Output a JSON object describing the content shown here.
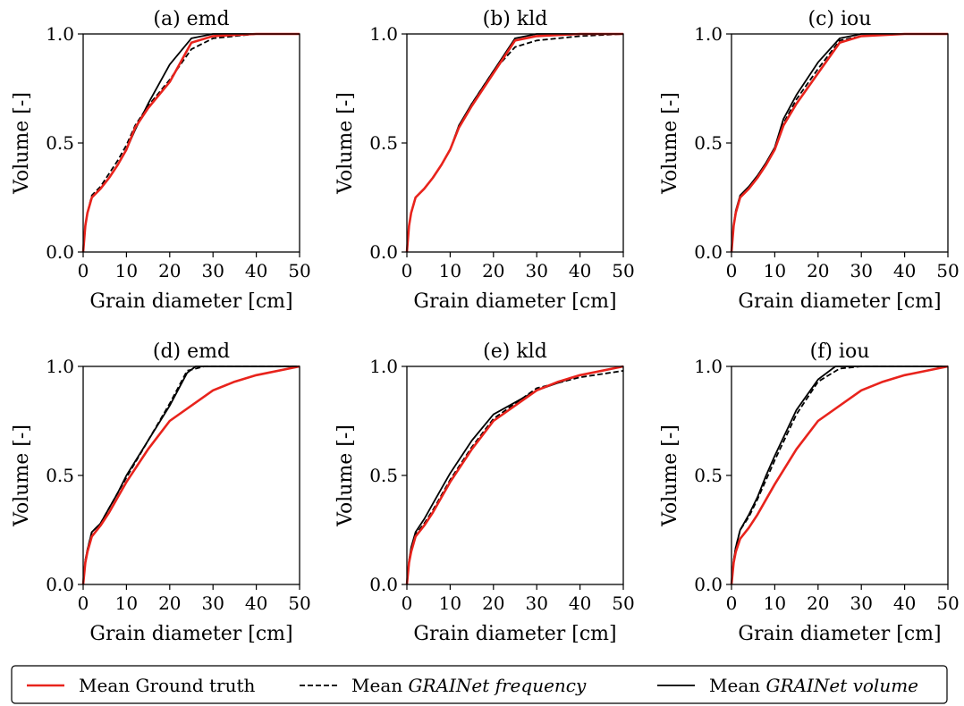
{
  "chart_data": [
    {
      "type": "line",
      "title": "(a) emd",
      "xlabel": "Grain diameter [cm]",
      "ylabel": "Volume [-]",
      "xlim": [
        0,
        50
      ],
      "ylim": [
        0,
        1
      ],
      "xticks": [
        "0",
        "10",
        "20",
        "30",
        "40",
        "50"
      ],
      "yticks": [
        "0.0",
        "0.5",
        "1.0"
      ],
      "series": [
        {
          "key": "gt",
          "x": [
            0,
            0.5,
            1,
            2,
            4,
            6,
            8,
            10,
            12,
            15,
            20,
            25,
            30,
            40,
            50
          ],
          "y": [
            0,
            0.12,
            0.18,
            0.25,
            0.29,
            0.34,
            0.4,
            0.47,
            0.57,
            0.66,
            0.78,
            0.96,
            0.99,
            1.0,
            1.0
          ]
        },
        {
          "key": "freq",
          "x": [
            0,
            0.5,
            1,
            2,
            4,
            6,
            8,
            10,
            12,
            15,
            20,
            25,
            30,
            40,
            50
          ],
          "y": [
            0,
            0.12,
            0.18,
            0.26,
            0.3,
            0.36,
            0.42,
            0.49,
            0.58,
            0.67,
            0.79,
            0.93,
            0.98,
            1.0,
            1.0
          ]
        },
        {
          "key": "vol",
          "x": [
            0,
            0.5,
            1,
            2,
            4,
            6,
            8,
            10,
            12,
            15,
            20,
            25,
            30,
            40,
            50
          ],
          "y": [
            0,
            0.12,
            0.18,
            0.25,
            0.29,
            0.34,
            0.4,
            0.47,
            0.56,
            0.68,
            0.86,
            0.98,
            1.0,
            1.0,
            1.0
          ]
        }
      ]
    },
    {
      "type": "line",
      "title": "(b) kld",
      "xlabel": "Grain diameter [cm]",
      "ylabel": "Volume [-]",
      "xlim": [
        0,
        50
      ],
      "ylim": [
        0,
        1
      ],
      "xticks": [
        "0",
        "10",
        "20",
        "30",
        "40",
        "50"
      ],
      "yticks": [
        "0.0",
        "0.5",
        "1.0"
      ],
      "series": [
        {
          "key": "gt",
          "x": [
            0,
            0.5,
            1,
            2,
            4,
            6,
            8,
            10,
            12,
            15,
            20,
            25,
            30,
            40,
            50
          ],
          "y": [
            0,
            0.12,
            0.18,
            0.25,
            0.29,
            0.34,
            0.4,
            0.47,
            0.57,
            0.67,
            0.82,
            0.97,
            0.99,
            1.0,
            1.0
          ]
        },
        {
          "key": "freq",
          "x": [
            0,
            0.5,
            1,
            2,
            4,
            6,
            8,
            10,
            12,
            15,
            20,
            25,
            30,
            40,
            50
          ],
          "y": [
            0,
            0.12,
            0.18,
            0.25,
            0.29,
            0.34,
            0.4,
            0.47,
            0.57,
            0.68,
            0.83,
            0.94,
            0.97,
            0.99,
            1.0
          ]
        },
        {
          "key": "vol",
          "x": [
            0,
            0.5,
            1,
            2,
            4,
            6,
            8,
            10,
            12,
            15,
            20,
            25,
            30,
            40,
            50
          ],
          "y": [
            0,
            0.12,
            0.18,
            0.25,
            0.29,
            0.34,
            0.4,
            0.47,
            0.58,
            0.68,
            0.83,
            0.98,
            1.0,
            1.0,
            1.0
          ]
        }
      ]
    },
    {
      "type": "line",
      "title": "(c) iou",
      "xlabel": "Grain diameter [cm]",
      "ylabel": "Volume [-]",
      "xlim": [
        0,
        50
      ],
      "ylim": [
        0,
        1
      ],
      "xticks": [
        "0",
        "10",
        "20",
        "30",
        "40",
        "50"
      ],
      "yticks": [
        "0.0",
        "0.5",
        "1.0"
      ],
      "series": [
        {
          "key": "gt",
          "x": [
            0,
            0.5,
            1,
            2,
            4,
            6,
            8,
            10,
            12,
            15,
            20,
            25,
            30,
            40,
            50
          ],
          "y": [
            0,
            0.12,
            0.18,
            0.25,
            0.29,
            0.34,
            0.4,
            0.47,
            0.58,
            0.68,
            0.82,
            0.96,
            0.99,
            1.0,
            1.0
          ]
        },
        {
          "key": "freq",
          "x": [
            0,
            0.5,
            1,
            2,
            4,
            6,
            8,
            10,
            12,
            15,
            20,
            25,
            30,
            40,
            50
          ],
          "y": [
            0,
            0.12,
            0.18,
            0.25,
            0.29,
            0.34,
            0.4,
            0.47,
            0.59,
            0.7,
            0.84,
            0.97,
            0.99,
            1.0,
            1.0
          ]
        },
        {
          "key": "vol",
          "x": [
            0,
            0.5,
            1,
            2,
            4,
            6,
            8,
            10,
            12,
            15,
            20,
            25,
            30,
            40,
            50
          ],
          "y": [
            0,
            0.12,
            0.19,
            0.26,
            0.3,
            0.35,
            0.41,
            0.48,
            0.61,
            0.72,
            0.87,
            0.98,
            1.0,
            1.0,
            1.0
          ]
        }
      ]
    },
    {
      "type": "line",
      "title": "(d) emd",
      "xlabel": "Grain diameter [cm]",
      "ylabel": "Volume [-]",
      "xlim": [
        0,
        50
      ],
      "ylim": [
        0,
        1
      ],
      "xticks": [
        "0",
        "10",
        "20",
        "30",
        "40",
        "50"
      ],
      "yticks": [
        "0.0",
        "0.5",
        "1.0"
      ],
      "series": [
        {
          "key": "gt",
          "x": [
            0,
            0.5,
            1,
            2,
            4,
            6,
            8,
            10,
            15,
            20,
            30,
            35,
            40,
            50
          ],
          "y": [
            0,
            0.1,
            0.15,
            0.22,
            0.27,
            0.33,
            0.4,
            0.47,
            0.62,
            0.75,
            0.89,
            0.93,
            0.96,
            1.0
          ]
        },
        {
          "key": "freq",
          "x": [
            0,
            0.5,
            1,
            2,
            4,
            6,
            8,
            10,
            15,
            20,
            24,
            28,
            30,
            50
          ],
          "y": [
            0,
            0.11,
            0.16,
            0.24,
            0.28,
            0.35,
            0.42,
            0.49,
            0.66,
            0.83,
            0.98,
            1.0,
            1.0,
            1.0
          ]
        },
        {
          "key": "vol",
          "x": [
            0,
            0.5,
            1,
            2,
            4,
            6,
            8,
            10,
            15,
            20,
            24,
            26,
            30,
            50
          ],
          "y": [
            0,
            0.11,
            0.16,
            0.24,
            0.28,
            0.35,
            0.42,
            0.5,
            0.66,
            0.82,
            0.97,
            1.0,
            1.0,
            1.0
          ]
        }
      ]
    },
    {
      "type": "line",
      "title": "(e) kld",
      "xlabel": "Grain diameter [cm]",
      "ylabel": "Volume [-]",
      "xlim": [
        0,
        50
      ],
      "ylim": [
        0,
        1
      ],
      "xticks": [
        "0",
        "10",
        "20",
        "30",
        "40",
        "50"
      ],
      "yticks": [
        "0.0",
        "0.5",
        "1.0"
      ],
      "series": [
        {
          "key": "gt",
          "x": [
            0,
            0.5,
            1,
            2,
            4,
            6,
            8,
            10,
            15,
            20,
            30,
            35,
            40,
            50
          ],
          "y": [
            0,
            0.1,
            0.15,
            0.22,
            0.27,
            0.33,
            0.4,
            0.47,
            0.62,
            0.75,
            0.89,
            0.93,
            0.96,
            1.0
          ]
        },
        {
          "key": "freq",
          "x": [
            0,
            0.5,
            1,
            2,
            4,
            6,
            8,
            10,
            15,
            20,
            30,
            40,
            50
          ],
          "y": [
            0,
            0.1,
            0.16,
            0.23,
            0.28,
            0.34,
            0.41,
            0.48,
            0.63,
            0.76,
            0.9,
            0.95,
            0.98
          ]
        },
        {
          "key": "vol",
          "x": [
            0,
            0.5,
            1,
            2,
            4,
            6,
            8,
            10,
            15,
            20,
            30,
            40,
            50
          ],
          "y": [
            0,
            0.11,
            0.17,
            0.24,
            0.3,
            0.37,
            0.44,
            0.51,
            0.66,
            0.78,
            0.89,
            0.96,
            1.0
          ]
        }
      ]
    },
    {
      "type": "line",
      "title": "(f) iou",
      "xlabel": "Grain diameter [cm]",
      "ylabel": "Volume [-]",
      "xlim": [
        0,
        50
      ],
      "ylim": [
        0,
        1
      ],
      "xticks": [
        "0",
        "10",
        "20",
        "30",
        "40",
        "50"
      ],
      "yticks": [
        "0.0",
        "0.5",
        "1.0"
      ],
      "series": [
        {
          "key": "gt",
          "x": [
            0,
            0.5,
            1,
            2,
            4,
            6,
            8,
            10,
            15,
            20,
            30,
            35,
            40,
            50
          ],
          "y": [
            0,
            0.1,
            0.15,
            0.21,
            0.26,
            0.32,
            0.39,
            0.46,
            0.62,
            0.75,
            0.89,
            0.93,
            0.96,
            1.0
          ]
        },
        {
          "key": "freq",
          "x": [
            0,
            0.5,
            1,
            2,
            4,
            6,
            8,
            10,
            15,
            20,
            25,
            30,
            50
          ],
          "y": [
            0,
            0.11,
            0.17,
            0.25,
            0.31,
            0.39,
            0.48,
            0.57,
            0.78,
            0.93,
            0.99,
            1.0,
            1.0
          ]
        },
        {
          "key": "vol",
          "x": [
            0,
            0.5,
            1,
            2,
            4,
            6,
            8,
            10,
            15,
            20,
            24,
            30,
            50
          ],
          "y": [
            0,
            0.11,
            0.17,
            0.25,
            0.32,
            0.4,
            0.5,
            0.59,
            0.8,
            0.94,
            1.0,
            1.0,
            1.0
          ]
        }
      ]
    }
  ],
  "legend": {
    "placement": "bottom",
    "items": [
      {
        "key": "gt",
        "prefix": "Mean Ground truth",
        "italic": "",
        "color": "#e8231c",
        "dash": "none"
      },
      {
        "key": "freq",
        "prefix": "Mean ",
        "italic": "GRAINet frequency",
        "color": "#000000",
        "dash": "dashed"
      },
      {
        "key": "vol",
        "prefix": "Mean ",
        "italic": "GRAINet volume",
        "color": "#000000",
        "dash": "solid"
      }
    ]
  }
}
